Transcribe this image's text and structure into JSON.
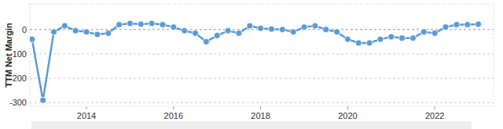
{
  "chart_data": {
    "type": "line",
    "y_label": "TTM Net Margin",
    "x": [
      2012.75,
      2013.0,
      2013.25,
      2013.5,
      2013.75,
      2014.0,
      2014.25,
      2014.5,
      2014.75,
      2015.0,
      2015.25,
      2015.5,
      2015.75,
      2016.0,
      2016.25,
      2016.5,
      2016.75,
      2017.0,
      2017.25,
      2017.5,
      2017.75,
      2018.0,
      2018.25,
      2018.5,
      2018.75,
      2019.0,
      2019.25,
      2019.5,
      2019.75,
      2020.0,
      2020.25,
      2020.5,
      2020.75,
      2021.0,
      2021.25,
      2021.5,
      2021.75,
      2022.0,
      2022.25,
      2022.5,
      2022.75,
      2023.0
    ],
    "values": [
      -40,
      -290,
      -10,
      15,
      -5,
      -10,
      -20,
      -15,
      20,
      25,
      22,
      25,
      20,
      10,
      -5,
      -15,
      -50,
      -25,
      -5,
      -15,
      15,
      5,
      2,
      0,
      -10,
      10,
      15,
      0,
      -10,
      -40,
      -55,
      -55,
      -40,
      -30,
      -35,
      -35,
      -10,
      -15,
      10,
      20,
      20,
      22
    ],
    "xlim": [
      2012.7,
      2023.35
    ],
    "ylim": [
      -315,
      105
    ],
    "xticks": [
      2014,
      2016,
      2018,
      2020,
      2022
    ],
    "yticks": [
      -300,
      -200,
      -100,
      0
    ],
    "grid": true,
    "color": "#5b9bd5",
    "marker": "circle"
  }
}
